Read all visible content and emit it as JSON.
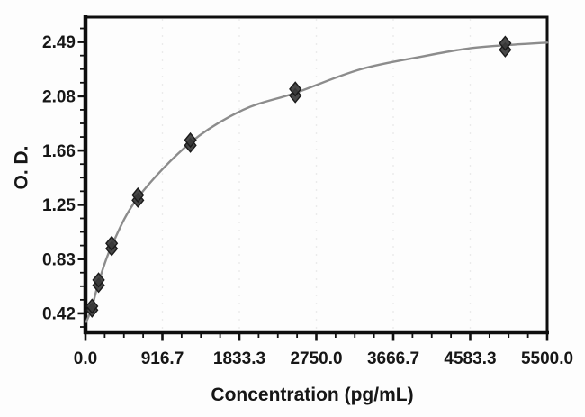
{
  "chart_data": {
    "type": "scatter",
    "title": "",
    "xlabel": "Concentration (pg/mL)",
    "ylabel": "O. D.",
    "xlim": [
      0,
      5500
    ],
    "ylim": [
      0.27,
      2.68
    ],
    "legend": "none",
    "grid": "faint dotted vertical lines at major x ticks",
    "x_ticks": [
      {
        "value": 0,
        "label": "0.0"
      },
      {
        "value": 916.7,
        "label": "916.7"
      },
      {
        "value": 1833.3,
        "label": "1833.3"
      },
      {
        "value": 2750.0,
        "label": "2750.0"
      },
      {
        "value": 3666.7,
        "label": "3666.7"
      },
      {
        "value": 4583.3,
        "label": "4583.3"
      },
      {
        "value": 5500.0,
        "label": "5500.0"
      }
    ],
    "y_ticks": [
      {
        "value": 0.415,
        "label": "0.42"
      },
      {
        "value": 0.83,
        "label": "0.83"
      },
      {
        "value": 1.245,
        "label": "1.25"
      },
      {
        "value": 1.66,
        "label": "1.66"
      },
      {
        "value": 2.075,
        "label": "2.08"
      },
      {
        "value": 2.49,
        "label": "2.49"
      }
    ],
    "minor_divisions": 4,
    "series": [
      {
        "name": "standard-duplicates",
        "type": "scatter",
        "marker": "diamond",
        "points": [
          {
            "x": 78.1,
            "od": [
              0.44,
              0.47
            ]
          },
          {
            "x": 156.3,
            "od": [
              0.63,
              0.67
            ]
          },
          {
            "x": 312.5,
            "od": [
              0.91,
              0.95
            ]
          },
          {
            "x": 625,
            "od": [
              1.28,
              1.32
            ]
          },
          {
            "x": 1250,
            "od": [
              1.7,
              1.74
            ]
          },
          {
            "x": 2500,
            "od": [
              2.08,
              2.13
            ]
          },
          {
            "x": 5000,
            "od": [
              2.43,
              2.48
            ]
          }
        ]
      },
      {
        "name": "fitted-curve",
        "type": "line",
        "points": [
          [
            10,
            0.35
          ],
          [
            78,
            0.46
          ],
          [
            156,
            0.65
          ],
          [
            312,
            0.93
          ],
          [
            625,
            1.3
          ],
          [
            1250,
            1.72
          ],
          [
            1876,
            1.97
          ],
          [
            2500,
            2.1
          ],
          [
            3270,
            2.28
          ],
          [
            4020,
            2.38
          ],
          [
            4556,
            2.44
          ],
          [
            5000,
            2.465
          ],
          [
            5500,
            2.485
          ]
        ]
      }
    ]
  },
  "colors": {
    "background": "#fdfdfd",
    "frame": "#0e0e0e",
    "tick": "#111111",
    "text": "#161616",
    "curve": "#8c8c8c",
    "marker_fill": "#3a3a3a",
    "marker_edge": "#1a1a1a",
    "gridline": "#e7e7e7"
  }
}
